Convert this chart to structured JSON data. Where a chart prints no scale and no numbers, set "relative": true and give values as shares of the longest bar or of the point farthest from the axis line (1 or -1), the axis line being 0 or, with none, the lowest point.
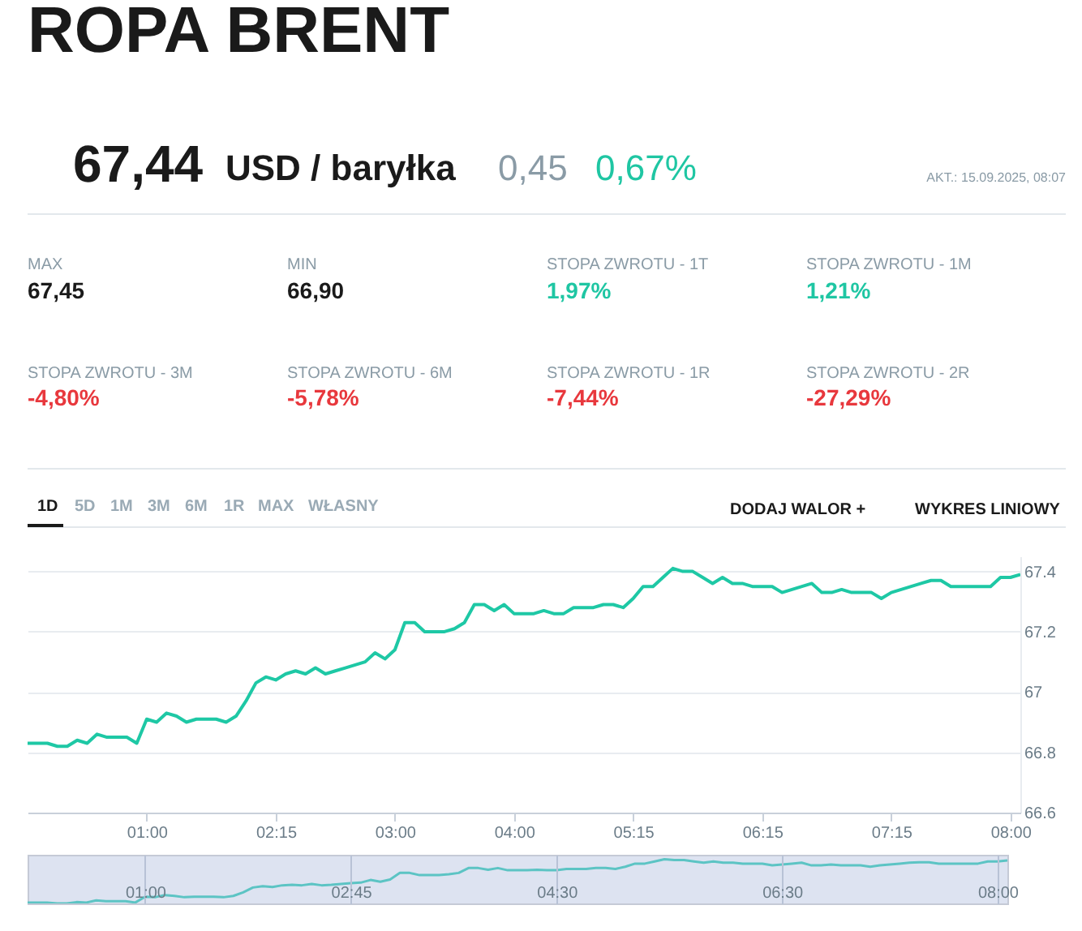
{
  "chart_data": [
    {
      "type": "line",
      "title": "ROPA BRENT",
      "annotations": [
        "67,44",
        "USD / baryłka",
        "0,45",
        "0,67%",
        "AKT.: 15.09.2025, 08:07",
        "MAX",
        "67,45",
        "MIN",
        "66,90",
        "STOPA ZWROTU - 1T",
        "1,97%",
        "STOPA ZWROTU - 1M",
        "1,21%",
        "STOPA ZWROTU - 3M",
        "-4,80%",
        "STOPA ZWROTU - 6M",
        "-5,78%",
        "STOPA ZWROTU - 1R",
        "-7,44%",
        "STOPA ZWROTU - 2R",
        "-27,29%",
        "1D",
        "5D",
        "1M",
        "3M",
        "6M",
        "1R",
        "MAX",
        "WŁASNY",
        "DODAJ WALOR  +",
        "WYKRES LINIOWY"
      ],
      "ylim": [
        66.6,
        67.45
      ],
      "yticks": [
        66.6,
        66.8,
        67,
        67.2,
        67.4
      ],
      "grid": "y",
      "categories": [
        null,
        null,
        null,
        null,
        null,
        null,
        null,
        null,
        null,
        null,
        null,
        null,
        "01:00",
        null,
        null,
        null,
        null,
        null,
        null,
        null,
        null,
        null,
        null,
        null,
        null,
        "02:15",
        null,
        null,
        null,
        null,
        null,
        null,
        null,
        null,
        null,
        null,
        null,
        "03:00",
        null,
        null,
        null,
        null,
        null,
        null,
        null,
        null,
        null,
        null,
        null,
        "04:00",
        null,
        null,
        null,
        null,
        null,
        null,
        null,
        null,
        null,
        null,
        null,
        "05:15",
        null,
        null,
        null,
        null,
        null,
        null,
        null,
        null,
        null,
        null,
        null,
        null,
        "06:15",
        null,
        null,
        null,
        null,
        null,
        null,
        null,
        null,
        null,
        null,
        null,
        null,
        "07:15",
        null,
        null,
        null,
        null,
        null,
        null,
        null,
        null,
        null,
        null,
        null,
        "08:00",
        null
      ],
      "series": [
        {
          "color": "#1ec8a5",
          "values": [
            66.83,
            66.83,
            66.83,
            66.82,
            66.82,
            66.84,
            66.83,
            66.86,
            66.85,
            66.85,
            66.85,
            66.83,
            66.91,
            66.9,
            66.93,
            66.92,
            66.9,
            66.91,
            66.91,
            66.91,
            66.9,
            66.92,
            66.97,
            67.03,
            67.05,
            67.04,
            67.06,
            67.07,
            67.06,
            67.08,
            67.06,
            67.07,
            67.08,
            67.09,
            67.1,
            67.13,
            67.11,
            67.14,
            67.23,
            67.23,
            67.2,
            67.2,
            67.2,
            67.21,
            67.23,
            67.29,
            67.29,
            67.27,
            67.29,
            67.26,
            67.26,
            67.26,
            67.27,
            67.26,
            67.26,
            67.28,
            67.28,
            67.28,
            67.29,
            67.29,
            67.28,
            67.31,
            67.35,
            67.35,
            67.38,
            67.41,
            67.4,
            67.4,
            67.38,
            67.36,
            67.38,
            67.36,
            67.36,
            67.35,
            67.35,
            67.35,
            67.33,
            67.34,
            67.35,
            67.36,
            67.33,
            67.33,
            67.34,
            67.33,
            67.33,
            67.33,
            67.31,
            67.33,
            67.34,
            67.35,
            67.36,
            67.37,
            67.37,
            67.35,
            67.35,
            67.35,
            67.35,
            67.35,
            67.38,
            67.38,
            67.39
          ]
        }
      ]
    },
    {
      "type": "line",
      "relative": true,
      "tick_labels": "x",
      "grid": "x",
      "categories": [
        null,
        null,
        null,
        null,
        null,
        null,
        null,
        null,
        null,
        null,
        null,
        null,
        "01:00",
        null,
        null,
        null,
        null,
        null,
        null,
        null,
        null,
        null,
        null,
        null,
        null,
        null,
        null,
        null,
        null,
        null,
        null,
        null,
        null,
        "02:45",
        null,
        null,
        null,
        null,
        null,
        null,
        null,
        null,
        null,
        null,
        null,
        null,
        null,
        null,
        null,
        null,
        null,
        null,
        null,
        null,
        "04:30",
        null,
        null,
        null,
        null,
        null,
        null,
        null,
        null,
        null,
        null,
        null,
        null,
        null,
        null,
        null,
        null,
        null,
        null,
        null,
        null,
        null,
        null,
        "06:30",
        null,
        null,
        null,
        null,
        null,
        null,
        null,
        null,
        null,
        null,
        null,
        null,
        null,
        null,
        null,
        null,
        null,
        null,
        null,
        null,
        null,
        "08:00",
        null
      ],
      "series": [
        {
          "color": "#5cc4c4",
          "values": [
            0.02,
            0.02,
            0.02,
            0,
            0,
            0.03,
            0.02,
            0.07,
            0.05,
            0.05,
            0.05,
            0.02,
            0.15,
            0.14,
            0.19,
            0.17,
            0.14,
            0.15,
            0.15,
            0.15,
            0.14,
            0.17,
            0.25,
            0.36,
            0.39,
            0.37,
            0.41,
            0.42,
            0.41,
            0.44,
            0.41,
            0.42,
            0.44,
            0.46,
            0.47,
            0.53,
            0.49,
            0.54,
            0.69,
            0.69,
            0.64,
            0.64,
            0.64,
            0.66,
            0.69,
            0.8,
            0.8,
            0.76,
            0.8,
            0.75,
            0.75,
            0.75,
            0.76,
            0.75,
            0.75,
            0.78,
            0.78,
            0.78,
            0.8,
            0.8,
            0.78,
            0.83,
            0.9,
            0.9,
            0.95,
            1,
            0.98,
            0.98,
            0.95,
            0.92,
            0.95,
            0.92,
            0.92,
            0.9,
            0.9,
            0.9,
            0.86,
            0.88,
            0.9,
            0.92,
            0.86,
            0.86,
            0.88,
            0.86,
            0.86,
            0.86,
            0.83,
            0.86,
            0.88,
            0.9,
            0.92,
            0.93,
            0.93,
            0.9,
            0.9,
            0.9,
            0.9,
            0.9,
            0.95,
            0.95,
            0.97
          ]
        }
      ]
    }
  ]
}
